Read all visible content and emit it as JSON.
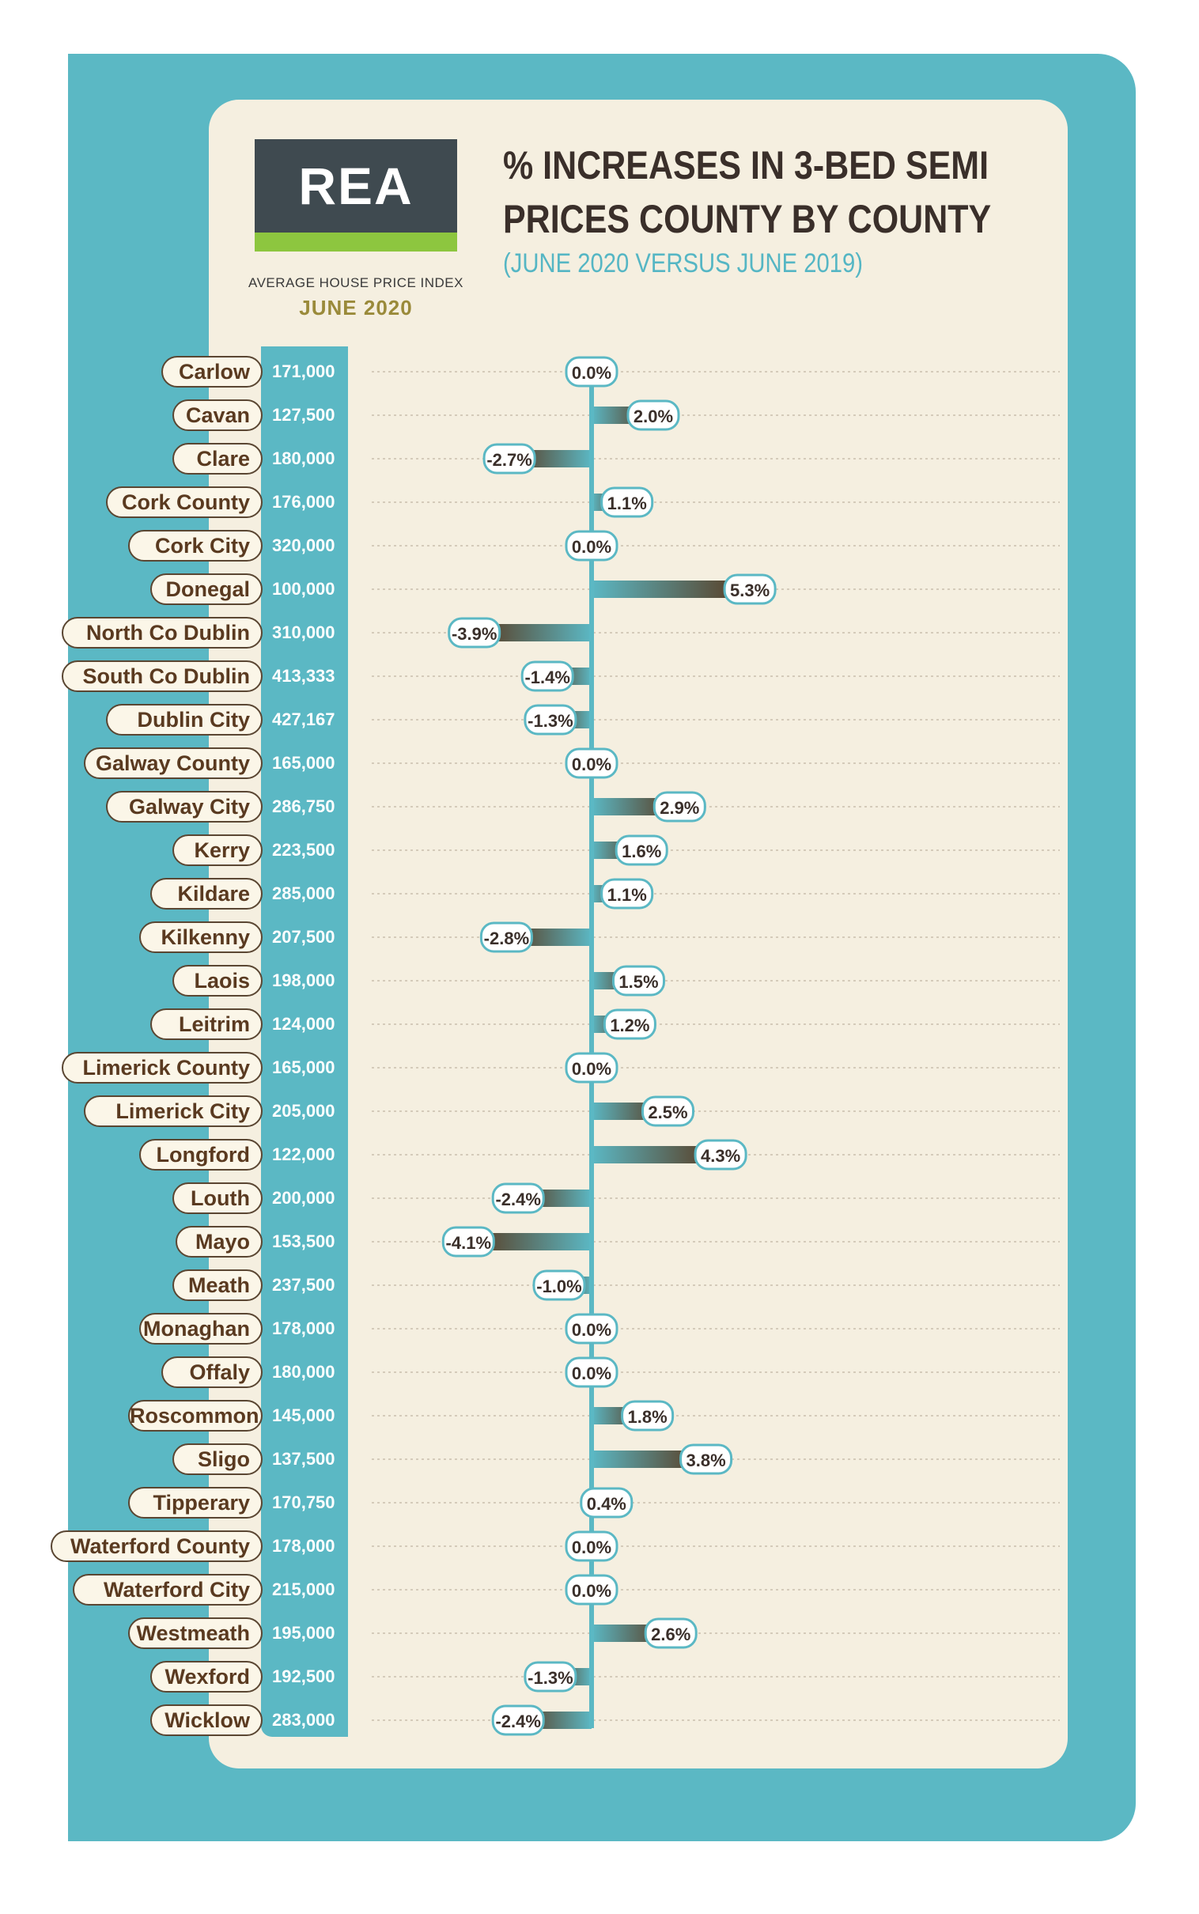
{
  "logo": {
    "text": "REA"
  },
  "index": {
    "label": "AVERAGE HOUSE PRICE INDEX",
    "date": "JUNE 2020"
  },
  "title": {
    "line1": "% INCREASES  IN 3-BED SEMI",
    "line2": "PRICES COUNTY BY COUNTY"
  },
  "subtitle": "(JUNE 2020 VERSUS JUNE 2019)",
  "colors": {
    "teal": "#5bb8c4",
    "brown": "#5a3a20",
    "paper": "#f5efe0",
    "logo_dark": "#3f4a50",
    "logo_green": "#8dc63f"
  },
  "chart_data": {
    "type": "bar",
    "orientation": "horizontal",
    "categories": [
      "Carlow",
      "Cavan",
      "Clare",
      "Cork County",
      "Cork City",
      "Donegal",
      "North Co Dublin",
      "South Co Dublin",
      "Dublin City",
      "Galway County",
      "Galway City",
      "Kerry",
      "Kildare",
      "Kilkenny",
      "Laois",
      "Leitrim",
      "Limerick County",
      "Limerick City",
      "Longford",
      "Louth",
      "Mayo",
      "Meath",
      "Monaghan",
      "Offaly",
      "Roscommon",
      "Sligo",
      "Tipperary",
      "Waterford County",
      "Waterford City",
      "Westmeath",
      "Wexford",
      "Wicklow"
    ],
    "prices": [
      "171,000",
      "127,500",
      "180,000",
      "176,000",
      "320,000",
      "100,000",
      "310,000",
      "413,333",
      "427,167",
      "165,000",
      "286,750",
      "223,500",
      "285,000",
      "207,500",
      "198,000",
      "124,000",
      "165,000",
      "205,000",
      "122,000",
      "200,000",
      "153,500",
      "237,500",
      "178,000",
      "180,000",
      "145,000",
      "137,500",
      "170,750",
      "178,000",
      "215,000",
      "195,000",
      "192,500",
      "283,000"
    ],
    "values": [
      0.0,
      2.0,
      -2.7,
      1.1,
      0.0,
      5.3,
      -3.9,
      -1.4,
      -1.3,
      0.0,
      2.9,
      1.6,
      1.1,
      -2.8,
      1.5,
      1.2,
      0.0,
      2.5,
      4.3,
      -2.4,
      -4.1,
      -1.0,
      0.0,
      0.0,
      1.8,
      3.8,
      0.4,
      0.0,
      0.0,
      2.6,
      -1.3,
      -2.4
    ],
    "labels": [
      "0.0%",
      "2.0%",
      "-2.7%",
      "1.1%",
      "0.0%",
      "5.3%",
      "-3.9%",
      "-1.4%",
      "-1.3%",
      "0.0%",
      "2.9%",
      "1.6%",
      "1.1%",
      "-2.8%",
      "1.5%",
      "1.2%",
      "0.0%",
      "2.5%",
      "4.3%",
      "-2.4%",
      "-4.1%",
      "-1.0%",
      "0.0%",
      "0.0%",
      "1.8%",
      "3.8%",
      "0.4%",
      "0.0%",
      "0.0%",
      "2.6%",
      "-1.3%",
      "-2.4%"
    ],
    "xlim": [
      -4.1,
      5.3
    ],
    "grid": true
  }
}
